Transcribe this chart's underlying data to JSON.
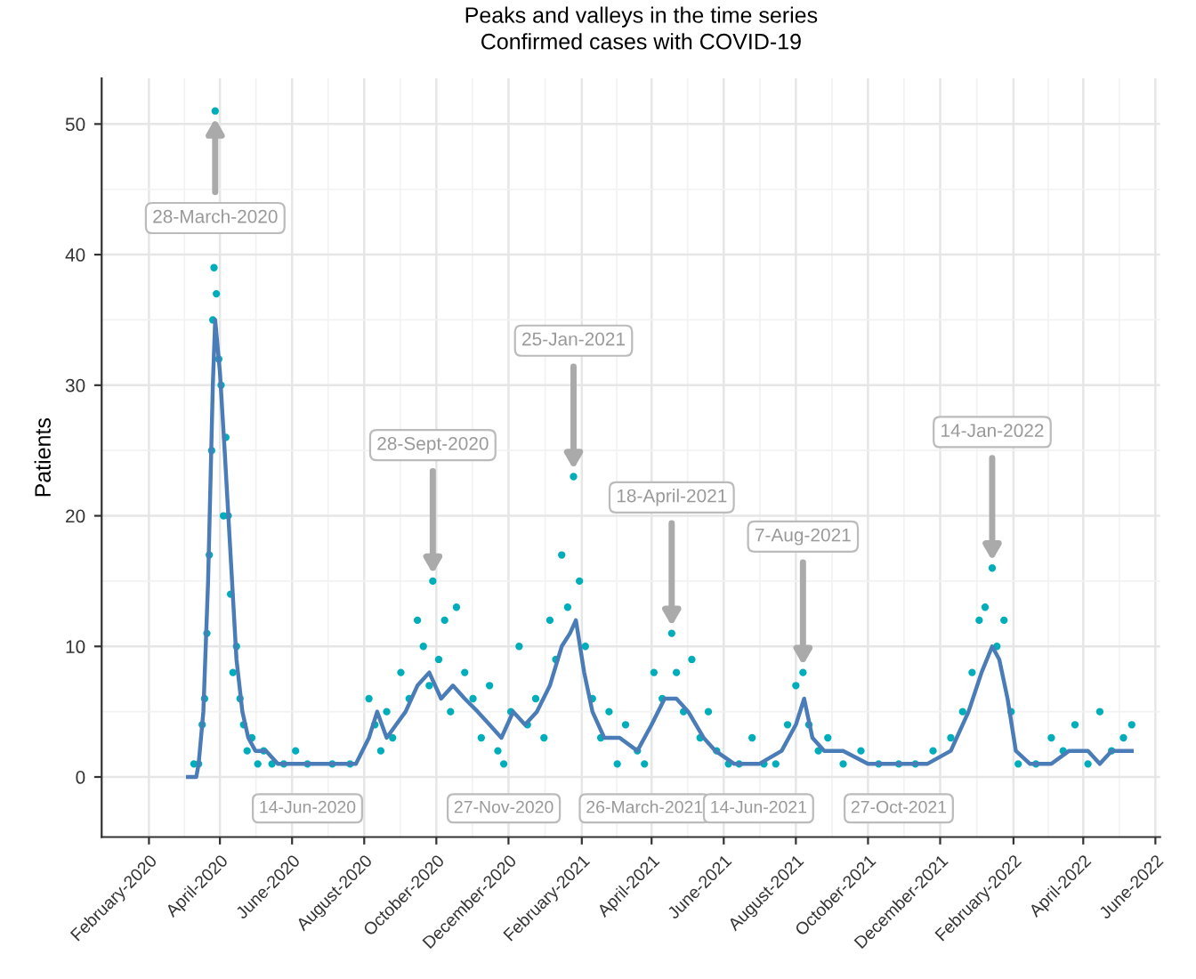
{
  "chart_data": {
    "type": "scatter",
    "title": "Peaks and valleys in the time series",
    "subtitle": "Confirmed cases with COVID-19",
    "ylabel": "Patients",
    "series": [
      {
        "color": "#00aebb",
        "x": [
          "2020-03-10",
          "2020-03-14",
          "2020-03-17",
          "2020-03-19",
          "2020-03-21",
          "2020-03-23",
          "2020-03-25",
          "2020-03-26",
          "2020-03-27",
          "2020-03-28",
          "2020-03-29",
          "2020-03-31",
          "2020-04-02",
          "2020-04-04",
          "2020-04-06",
          "2020-04-08",
          "2020-04-10",
          "2020-04-12",
          "2020-04-15",
          "2020-04-18",
          "2020-04-21",
          "2020-04-24",
          "2020-04-28",
          "2020-05-03",
          "2020-05-08",
          "2020-05-15",
          "2020-05-25",
          "2020-06-04",
          "2020-06-14",
          "2020-07-05",
          "2020-07-20",
          "2020-08-05",
          "2020-08-10",
          "2020-08-15",
          "2020-08-20",
          "2020-08-25",
          "2020-09-01",
          "2020-09-08",
          "2020-09-15",
          "2020-09-20",
          "2020-09-25",
          "2020-09-28",
          "2020-10-03",
          "2020-10-08",
          "2020-10-13",
          "2020-10-18",
          "2020-10-25",
          "2020-11-01",
          "2020-11-08",
          "2020-11-15",
          "2020-11-22",
          "2020-11-27",
          "2020-12-03",
          "2020-12-10",
          "2020-12-17",
          "2020-12-24",
          "2020-12-31",
          "2021-01-05",
          "2021-01-10",
          "2021-01-15",
          "2021-01-20",
          "2021-01-25",
          "2021-01-30",
          "2021-02-04",
          "2021-02-10",
          "2021-02-17",
          "2021-02-24",
          "2021-03-03",
          "2021-03-10",
          "2021-03-20",
          "2021-03-26",
          "2021-04-03",
          "2021-04-10",
          "2021-04-18",
          "2021-04-22",
          "2021-04-28",
          "2021-05-05",
          "2021-05-12",
          "2021-05-19",
          "2021-05-26",
          "2021-06-05",
          "2021-06-14",
          "2021-06-25",
          "2021-07-05",
          "2021-07-15",
          "2021-07-25",
          "2021-08-01",
          "2021-08-07",
          "2021-08-12",
          "2021-08-20",
          "2021-08-28",
          "2021-09-10",
          "2021-09-25",
          "2021-10-10",
          "2021-10-27",
          "2021-11-10",
          "2021-11-25",
          "2021-12-10",
          "2021-12-20",
          "2021-12-28",
          "2022-01-03",
          "2022-01-08",
          "2022-01-14",
          "2022-01-18",
          "2022-01-24",
          "2022-01-30",
          "2022-02-05",
          "2022-02-20",
          "2022-03-05",
          "2022-03-15",
          "2022-03-25",
          "2022-04-05",
          "2022-04-15",
          "2022-04-25",
          "2022-05-05",
          "2022-05-12"
        ],
        "values": [
          1,
          1,
          4,
          6,
          11,
          17,
          25,
          35,
          39,
          51,
          37,
          32,
          30,
          20,
          26,
          20,
          14,
          8,
          10,
          6,
          4,
          2,
          3,
          1,
          2,
          1,
          1,
          2,
          1,
          1,
          1,
          6,
          4,
          2,
          5,
          3,
          8,
          6,
          12,
          10,
          7,
          15,
          9,
          12,
          5,
          13,
          8,
          6,
          3,
          7,
          2,
          1,
          5,
          10,
          4,
          6,
          3,
          12,
          9,
          17,
          13,
          23,
          15,
          10,
          6,
          3,
          5,
          1,
          4,
          2,
          1,
          8,
          6,
          11,
          8,
          5,
          9,
          3,
          5,
          2,
          1,
          1,
          3,
          1,
          1,
          4,
          7,
          8,
          4,
          2,
          3,
          1,
          2,
          1,
          1,
          1,
          2,
          3,
          5,
          8,
          12,
          13,
          16,
          10,
          12,
          5,
          1,
          1,
          3,
          2,
          4,
          1,
          5,
          2,
          3,
          4
        ]
      },
      {
        "type": "line",
        "color": "#4a7db8",
        "x": [
          "2020-03-05",
          "2020-03-12",
          "2020-03-14",
          "2020-03-18",
          "2020-03-22",
          "2020-03-26",
          "2020-03-28",
          "2020-04-01",
          "2020-04-05",
          "2020-04-10",
          "2020-04-15",
          "2020-04-20",
          "2020-04-25",
          "2020-05-01",
          "2020-05-10",
          "2020-05-20",
          "2020-06-01",
          "2020-07-01",
          "2020-07-25",
          "2020-08-05",
          "2020-08-12",
          "2020-08-20",
          "2020-08-28",
          "2020-09-05",
          "2020-09-15",
          "2020-09-25",
          "2020-10-05",
          "2020-10-15",
          "2020-10-25",
          "2020-11-05",
          "2020-11-15",
          "2020-11-25",
          "2020-12-05",
          "2020-12-15",
          "2020-12-25",
          "2021-01-05",
          "2021-01-15",
          "2021-01-22",
          "2021-01-27",
          "2021-02-03",
          "2021-02-10",
          "2021-02-20",
          "2021-03-05",
          "2021-03-20",
          "2021-04-01",
          "2021-04-12",
          "2021-04-22",
          "2021-05-02",
          "2021-05-15",
          "2021-05-25",
          "2021-06-10",
          "2021-07-01",
          "2021-07-20",
          "2021-08-01",
          "2021-08-08",
          "2021-08-15",
          "2021-08-25",
          "2021-09-10",
          "2021-10-01",
          "2021-11-01",
          "2021-11-20",
          "2021-12-10",
          "2021-12-25",
          "2022-01-05",
          "2022-01-14",
          "2022-01-20",
          "2022-01-27",
          "2022-02-03",
          "2022-02-15",
          "2022-03-05",
          "2022-03-20",
          "2022-04-05",
          "2022-04-15",
          "2022-04-25",
          "2022-05-12"
        ],
        "values": [
          0,
          0,
          1,
          5,
          15,
          30,
          35,
          31,
          25,
          17,
          9,
          5,
          3,
          2,
          2,
          1,
          1,
          1,
          1,
          3,
          5,
          3,
          4,
          5,
          7,
          8,
          6,
          7,
          6,
          5,
          4,
          3,
          5,
          4,
          5,
          7,
          10,
          11,
          12,
          8,
          5,
          3,
          3,
          2,
          4,
          6,
          6,
          5,
          3,
          2,
          1,
          1,
          2,
          4,
          6,
          3,
          2,
          2,
          1,
          1,
          1,
          2,
          5,
          8,
          10,
          9,
          6,
          2,
          1,
          1,
          2,
          2,
          1,
          2,
          2
        ]
      }
    ],
    "xlim": [
      "2019-12-23",
      "2022-06-05"
    ],
    "xticks": [
      {
        "value": "2020-02-01",
        "label": "February-2020"
      },
      {
        "value": "2020-04-01",
        "label": "April-2020"
      },
      {
        "value": "2020-06-01",
        "label": "June-2020"
      },
      {
        "value": "2020-08-01",
        "label": "August-2020"
      },
      {
        "value": "2020-10-01",
        "label": "October-2020"
      },
      {
        "value": "2020-12-01",
        "label": "December-2020"
      },
      {
        "value": "2021-02-01",
        "label": "February-2021"
      },
      {
        "value": "2021-04-01",
        "label": "April-2021"
      },
      {
        "value": "2021-06-01",
        "label": "June-2021"
      },
      {
        "value": "2021-08-01",
        "label": "August-2021"
      },
      {
        "value": "2021-10-01",
        "label": "October-2021"
      },
      {
        "value": "2021-12-01",
        "label": "December-2021"
      },
      {
        "value": "2022-02-01",
        "label": "February-2022"
      },
      {
        "value": "2022-04-01",
        "label": "April-2022"
      },
      {
        "value": "2022-06-01",
        "label": "June-2022"
      }
    ],
    "ylim": [
      -4.6,
      53.5
    ],
    "yticks": [
      0,
      10,
      20,
      30,
      40,
      50
    ],
    "grid": true,
    "annotations": [
      {
        "text": "28-March-2020",
        "x": "2020-03-28",
        "y": 51
      },
      {
        "text": "28-Sept-2020",
        "x": "2020-09-28",
        "y": 15
      },
      {
        "text": "25-Jan-2021",
        "x": "2021-01-25",
        "y": 23
      },
      {
        "text": "18-April-2021",
        "x": "2021-04-18",
        "y": 11
      },
      {
        "text": "7-Aug-2021",
        "x": "2021-08-07",
        "y": 8
      },
      {
        "text": "14-Jan-2022",
        "x": "2022-01-14",
        "y": 16
      },
      {
        "text": "14-Jun-2020",
        "x": "2020-06-14",
        "y": 1
      },
      {
        "text": "27-Nov-2020",
        "x": "2020-11-27",
        "y": 1
      },
      {
        "text": "26-March-2021",
        "x": "2021-03-26",
        "y": 1
      },
      {
        "text": "14-Jun-2021",
        "x": "2021-06-14",
        "y": 1
      },
      {
        "text": "27-Oct-2021",
        "x": "2021-10-27",
        "y": 1
      }
    ]
  }
}
